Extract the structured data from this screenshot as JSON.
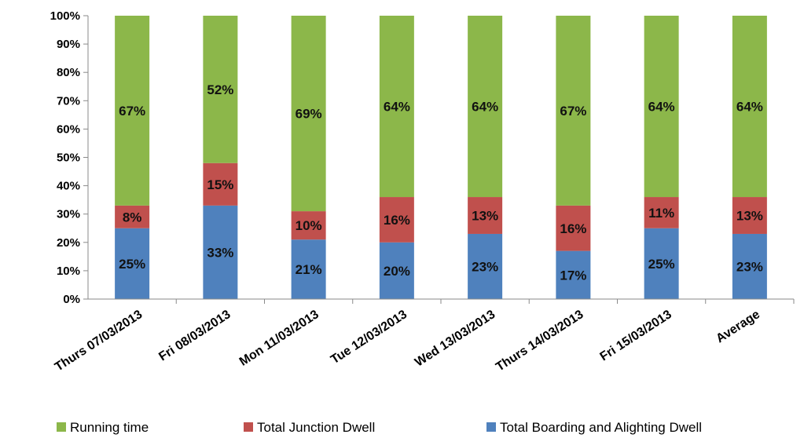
{
  "chart_data": {
    "type": "bar",
    "stacked": true,
    "percent": true,
    "categories": [
      "Thurs 07/03/2013",
      "Fri 08/03/2013",
      "Mon 11/03/2013",
      "Tue 12/03/2013",
      "Wed 13/03/2013",
      "Thurs 14/03/2013",
      "Fri 15/03/2013",
      "Average"
    ],
    "series": [
      {
        "name": "Total Boarding and Alighting Dwell",
        "color": "#4f81bd",
        "values": [
          25,
          33,
          21,
          20,
          23,
          17,
          25,
          23
        ]
      },
      {
        "name": "Total Junction Dwell",
        "color": "#c0504d",
        "values": [
          8,
          15,
          10,
          16,
          13,
          16,
          11,
          13
        ]
      },
      {
        "name": "Running time",
        "color": "#8cb74a",
        "values": [
          67,
          52,
          69,
          64,
          64,
          67,
          64,
          64
        ]
      }
    ],
    "legend_order": [
      "Running time",
      "Total Junction Dwell",
      "Total Boarding and Alighting Dwell"
    ],
    "legend_position": "bottom",
    "ylim": [
      0,
      100
    ],
    "yticks": [
      "0%",
      "10%",
      "20%",
      "30%",
      "40%",
      "50%",
      "60%",
      "70%",
      "80%",
      "90%",
      "100%"
    ],
    "grid": false
  }
}
